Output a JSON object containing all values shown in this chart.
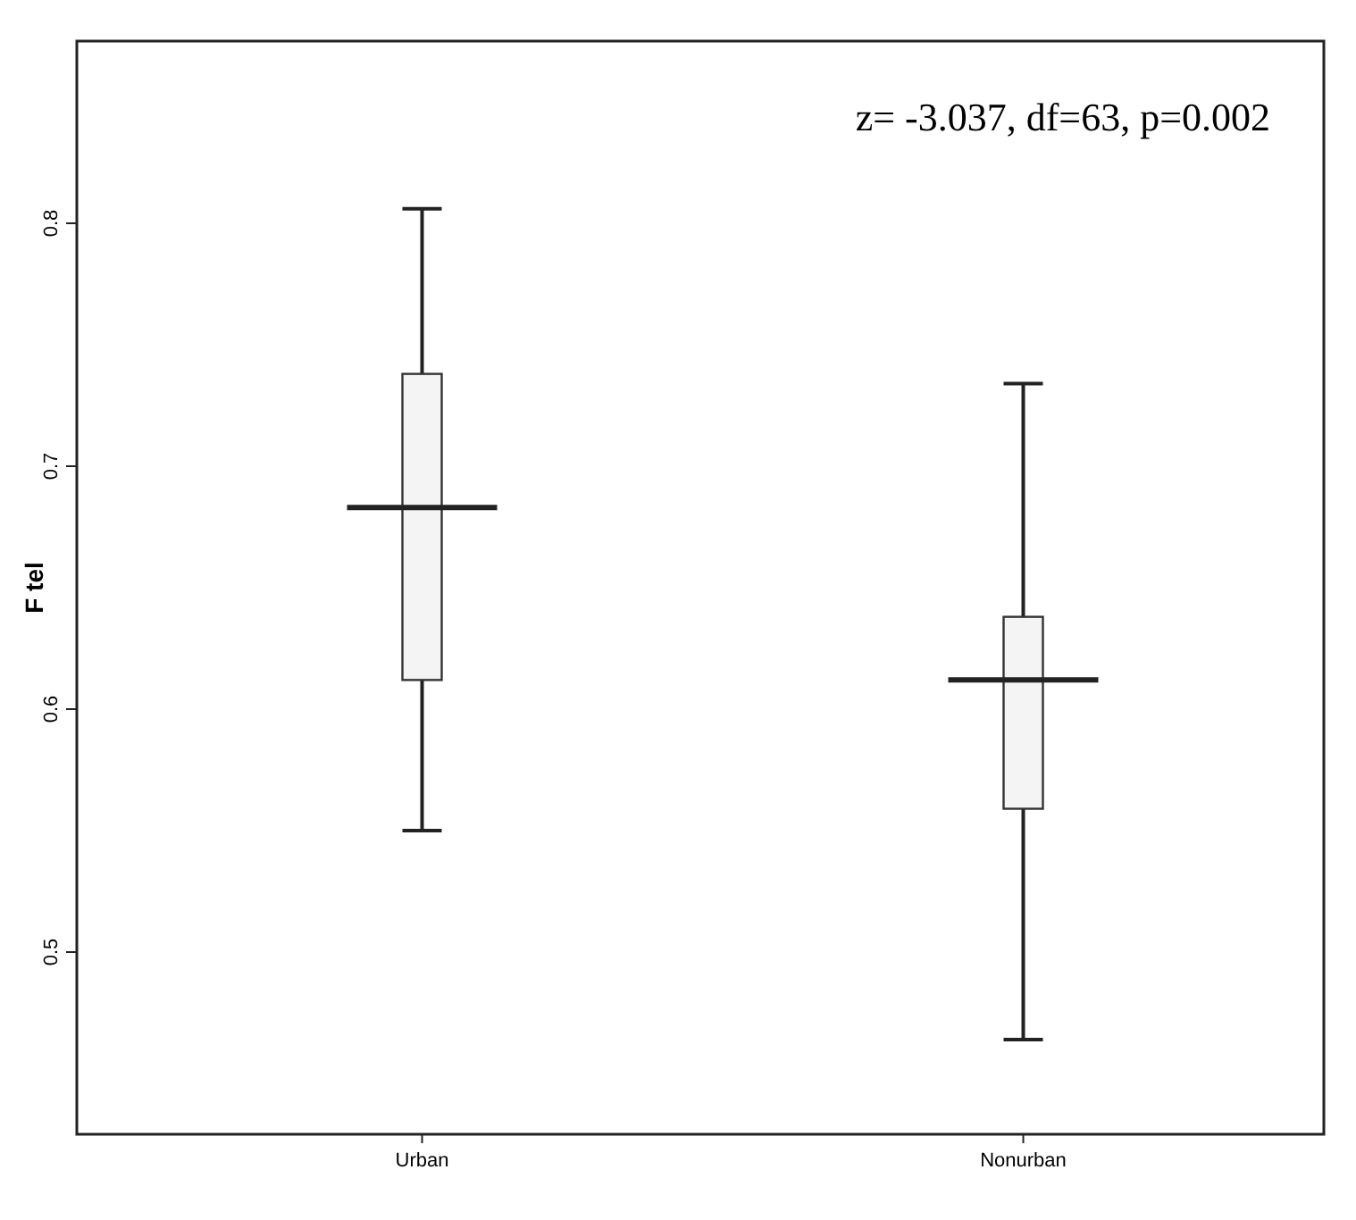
{
  "chart_data": {
    "type": "box",
    "categories": [
      "Urban",
      "Nonurban"
    ],
    "ylabel": "F tel",
    "ylim": [
      0.425,
      0.875
    ],
    "yticks": [
      0.5,
      0.6,
      0.7,
      0.8
    ],
    "grid": false,
    "annotations": [
      "z= -3.037, df=63, p=0.002"
    ],
    "boxes": [
      {
        "low": 0.55,
        "q1": 0.612,
        "median": 0.683,
        "q3": 0.738,
        "high": 0.806
      },
      {
        "low": 0.464,
        "q1": 0.559,
        "median": 0.612,
        "q3": 0.638,
        "high": 0.734
      }
    ]
  }
}
